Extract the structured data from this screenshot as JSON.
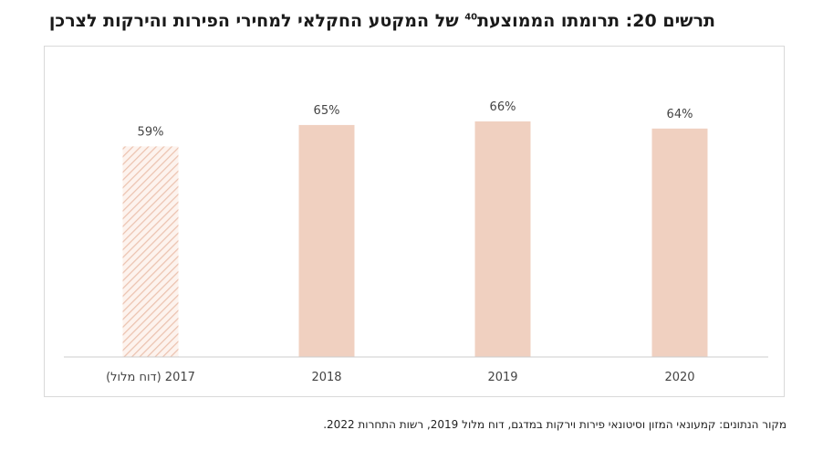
{
  "title": {
    "main": "תרשים 20: תרומתו הממוצעת",
    "footnote": "40",
    "rest": " של המקטע החקלאי למחירי הפירות והירקות לצרכן"
  },
  "source": "מקור הנתונים: קמעונאי המזון וסיטונאי פירות וירקות במדגם, דוח מלול 2019, רשות התחרות 2022.",
  "colors": {
    "bar": "#f0d0c0",
    "hatch": "#f0c8b6",
    "axis": "#cccccc"
  },
  "chart_data": {
    "type": "bar",
    "categories": [
      "2017 (דוח מלול)",
      "2018",
      "2019",
      "2020"
    ],
    "values": [
      59,
      65,
      66,
      64
    ],
    "value_labels": [
      "59%",
      "65%",
      "66%",
      "64%"
    ],
    "hatched": [
      true,
      false,
      false,
      false
    ],
    "ylim": [
      0,
      100
    ],
    "grid": false,
    "legend": "none"
  }
}
